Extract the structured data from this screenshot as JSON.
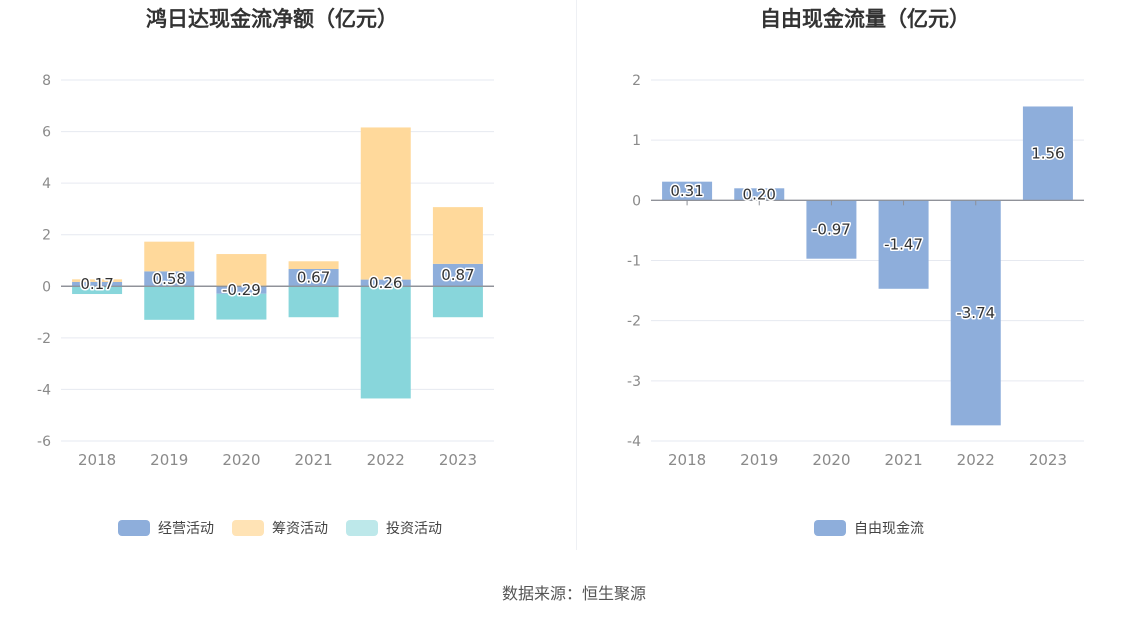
{
  "source_label": "数据来源：恒生聚源",
  "chart_data": [
    {
      "id": "left",
      "type": "bar",
      "stacked": true,
      "title": "鸿日达现金流净额（亿元）",
      "categories": [
        "2018",
        "2019",
        "2020",
        "2021",
        "2022",
        "2023"
      ],
      "ylim": [
        -6,
        8
      ],
      "yticks": [
        8,
        6,
        4,
        2,
        0,
        -2,
        -4,
        -6
      ],
      "series": [
        {
          "name": "经营活动",
          "color": "#8eaedb",
          "values": [
            0.17,
            0.58,
            -0.29,
            0.67,
            0.26,
            0.87
          ]
        },
        {
          "name": "筹资活动",
          "color": "#ffd99b",
          "values": [
            0.1,
            1.15,
            1.25,
            0.3,
            5.9,
            2.2
          ]
        },
        {
          "name": "投资活动",
          "color": "#88d6db",
          "values": [
            -0.3,
            -1.3,
            -1.0,
            -1.2,
            -4.35,
            -1.2
          ]
        }
      ],
      "data_labels": [
        "0.17",
        "0.58",
        "-0.29",
        "0.67",
        "0.26",
        "0.87"
      ],
      "legend": [
        {
          "label": "经营活动",
          "color": "#8eaedb"
        },
        {
          "label": "筹资活动",
          "color": "#ffe3b5"
        },
        {
          "label": "投资活动",
          "color": "#bde8ea"
        }
      ]
    },
    {
      "id": "right",
      "type": "bar",
      "stacked": false,
      "title": "自由现金流量（亿元）",
      "categories": [
        "2018",
        "2019",
        "2020",
        "2021",
        "2022",
        "2023"
      ],
      "ylim": [
        -4,
        2
      ],
      "yticks": [
        2,
        1,
        0,
        -1,
        -2,
        -3,
        -4
      ],
      "series": [
        {
          "name": "自由现金流",
          "color": "#8eaedb",
          "values": [
            0.31,
            0.2,
            -0.97,
            -1.47,
            -3.74,
            1.56
          ]
        }
      ],
      "data_labels": [
        "0.31",
        "0.20",
        "-0.97",
        "-1.47",
        "-3.74",
        "1.56"
      ],
      "legend": [
        {
          "label": "自由现金流",
          "color": "#8eaedb"
        }
      ]
    }
  ]
}
